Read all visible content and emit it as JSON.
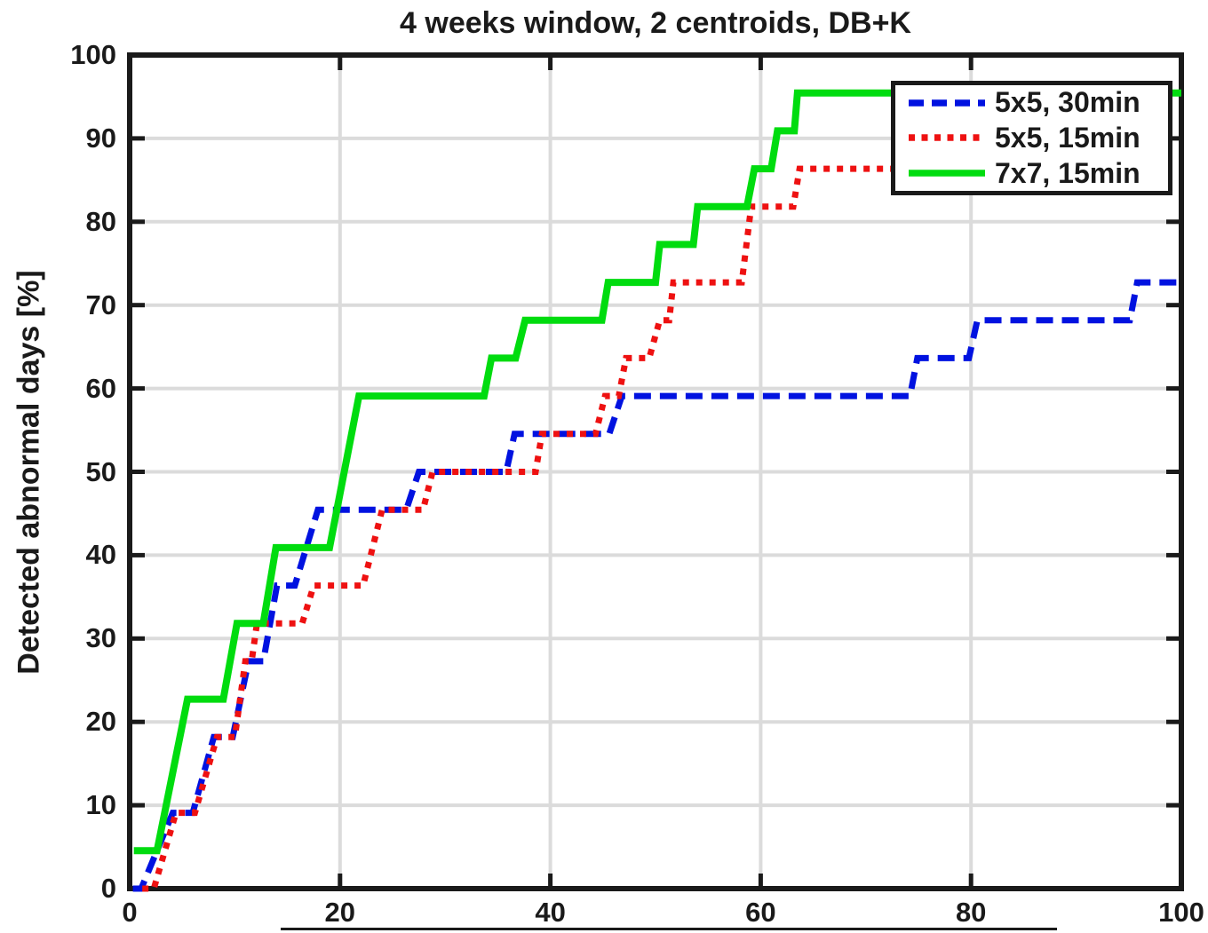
{
  "title": "4 weeks window, 2 centroids, DB+K",
  "chart_data": {
    "type": "line",
    "subtype": "step-cdf",
    "title": "4 weeks window, 2 centroids, DB+K",
    "xlabel": "",
    "ylabel": "Detected abnormal days [%]",
    "xlim": [
      0,
      100
    ],
    "ylim": [
      0,
      100
    ],
    "xticks": [
      0,
      20,
      40,
      60,
      80,
      100
    ],
    "yticks": [
      0,
      10,
      20,
      30,
      40,
      50,
      60,
      70,
      80,
      90,
      100
    ],
    "grid": true,
    "grid_color": "#dbdbdb",
    "axis_color": "#1a1a1a",
    "legend_position": "top-right",
    "series": [
      {
        "name": "5x5, 30min",
        "color": "#0012e0",
        "style": "dashed",
        "dash": [
          19,
          10
        ],
        "legend_dash": [
          17,
          9
        ],
        "width": 7,
        "points": [
          [
            0.3,
            0
          ],
          [
            1.1,
            0
          ],
          [
            4.1,
            9.09
          ],
          [
            6.0,
            9.09
          ],
          [
            8.0,
            18.18
          ],
          [
            9.8,
            18.18
          ],
          [
            11.3,
            27.27
          ],
          [
            12.7,
            27.27
          ],
          [
            14.0,
            36.36
          ],
          [
            15.7,
            36.36
          ],
          [
            17.9,
            45.45
          ],
          [
            26.3,
            45.45
          ],
          [
            27.5,
            50
          ],
          [
            35.8,
            50
          ],
          [
            36.6,
            54.55
          ],
          [
            45.6,
            54.55
          ],
          [
            46.8,
            59.09
          ],
          [
            74.2,
            59.09
          ],
          [
            74.9,
            63.64
          ],
          [
            79.8,
            63.64
          ],
          [
            80.6,
            68.18
          ],
          [
            95.1,
            68.18
          ],
          [
            95.8,
            72.73
          ],
          [
            100,
            72.73
          ]
        ]
      },
      {
        "name": "5x5, 15min",
        "color": "#ee1111",
        "style": "dotted",
        "dash": [
          7,
          8
        ],
        "legend_dash": [
          7,
          7.5
        ],
        "width": 7,
        "points": [
          [
            1.2,
            0
          ],
          [
            2.3,
            0
          ],
          [
            4.4,
            9.09
          ],
          [
            6.2,
            9.09
          ],
          [
            8.3,
            18.18
          ],
          [
            10.0,
            18.18
          ],
          [
            11.0,
            27.27
          ],
          [
            11.6,
            27.27
          ],
          [
            12.1,
            31.82
          ],
          [
            16.4,
            31.82
          ],
          [
            17.5,
            36.36
          ],
          [
            22.2,
            36.36
          ],
          [
            24.0,
            45.45
          ],
          [
            27.9,
            45.45
          ],
          [
            28.8,
            50
          ],
          [
            38.6,
            50
          ],
          [
            39.2,
            54.55
          ],
          [
            44.3,
            54.55
          ],
          [
            45.2,
            59.09
          ],
          [
            46.5,
            59.09
          ],
          [
            47.2,
            63.64
          ],
          [
            49.4,
            63.64
          ],
          [
            50.4,
            68.18
          ],
          [
            51.3,
            68.18
          ],
          [
            51.7,
            72.73
          ],
          [
            58.2,
            72.73
          ],
          [
            59.1,
            81.82
          ],
          [
            63.1,
            81.82
          ],
          [
            63.7,
            86.36
          ],
          [
            75.0,
            86.36
          ],
          [
            75.8,
            90.91
          ],
          [
            85.0,
            90.91
          ],
          [
            85.8,
            95.45
          ],
          [
            100,
            95.45
          ]
        ]
      },
      {
        "name": "7x7, 15min",
        "color": "#00dc0f",
        "style": "solid",
        "dash": [],
        "legend_dash": [],
        "width": 8,
        "points": [
          [
            0.4,
            4.55
          ],
          [
            2.6,
            4.55
          ],
          [
            5.5,
            22.73
          ],
          [
            8.9,
            22.73
          ],
          [
            10.2,
            31.82
          ],
          [
            12.7,
            31.82
          ],
          [
            13.9,
            40.91
          ],
          [
            19.0,
            40.91
          ],
          [
            21.8,
            59.09
          ],
          [
            33.7,
            59.09
          ],
          [
            34.4,
            63.64
          ],
          [
            36.7,
            63.64
          ],
          [
            37.6,
            68.18
          ],
          [
            44.9,
            68.18
          ],
          [
            45.5,
            72.73
          ],
          [
            50.0,
            72.73
          ],
          [
            50.4,
            77.27
          ],
          [
            53.6,
            77.27
          ],
          [
            54.0,
            81.82
          ],
          [
            58.7,
            81.82
          ],
          [
            59.4,
            86.36
          ],
          [
            61.0,
            86.36
          ],
          [
            61.6,
            90.91
          ],
          [
            63.2,
            90.91
          ],
          [
            63.5,
            95.45
          ],
          [
            100,
            95.45
          ]
        ]
      }
    ]
  }
}
